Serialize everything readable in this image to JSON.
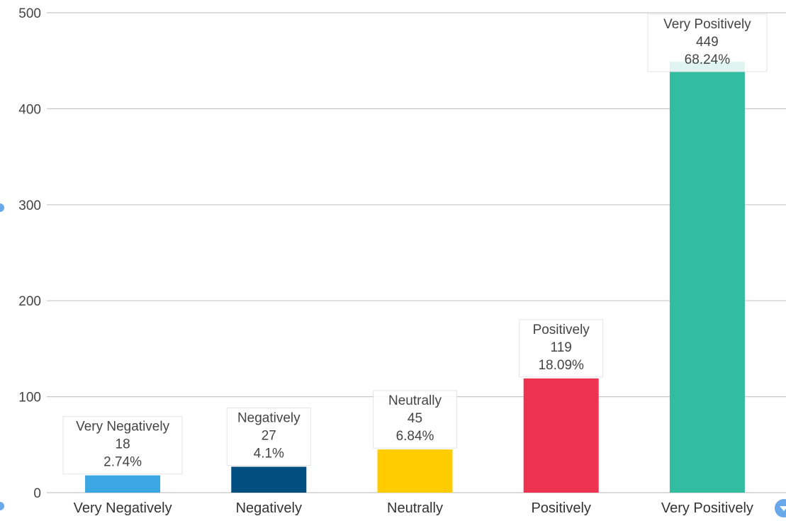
{
  "chart_data": {
    "type": "bar",
    "categories": [
      "Very Negatively",
      "Negatively",
      "Neutrally",
      "Positively",
      "Very Positively"
    ],
    "values": [
      18,
      27,
      45,
      119,
      449
    ],
    "percentages": [
      "2.74%",
      "4.1%",
      "6.84%",
      "18.09%",
      "68.24%"
    ],
    "colors": [
      "#3aa6e2",
      "#014e80",
      "#ffcc00",
      "#ee3350",
      "#32bca0"
    ],
    "yticks": [
      "0",
      "100",
      "200",
      "300",
      "400",
      "500"
    ],
    "ylim": [
      0,
      500
    ],
    "grid": true,
    "title": "",
    "xlabel": "",
    "ylabel": ""
  },
  "icons": {
    "scroll_down": "chevron-down-icon"
  }
}
